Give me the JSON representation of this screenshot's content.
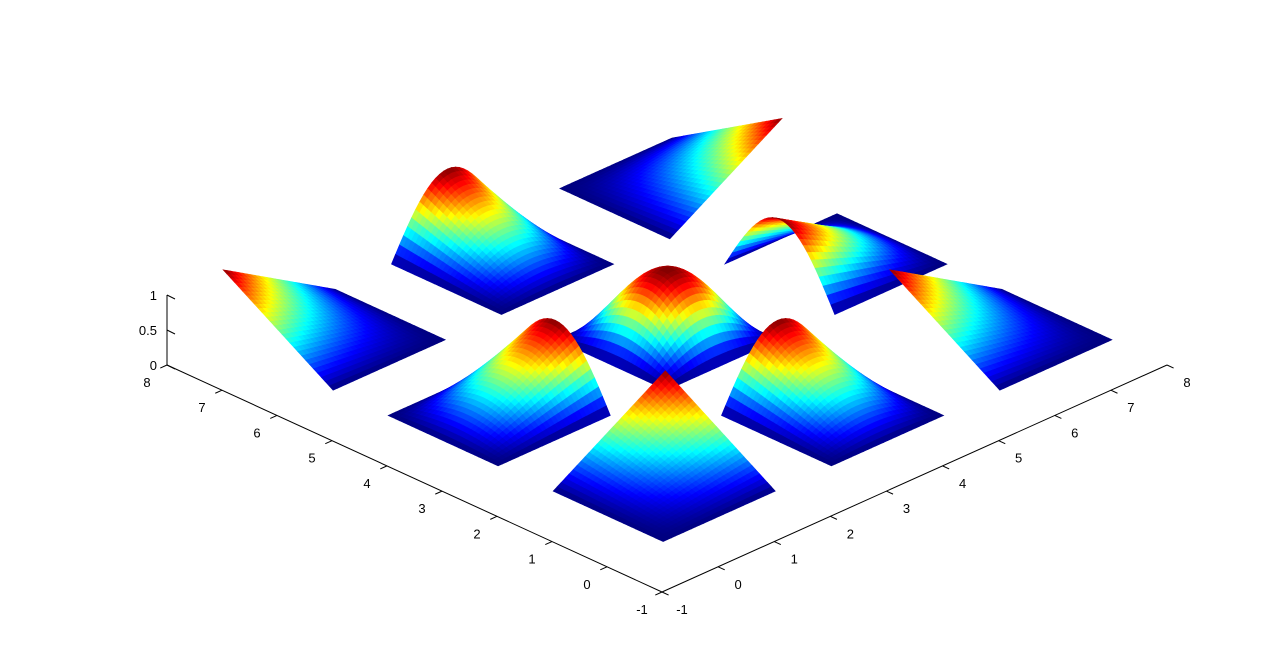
{
  "chart_data": {
    "type": "surface",
    "description_colormap": "jet",
    "xlim": [
      -1,
      8
    ],
    "ylim": [
      -1,
      8
    ],
    "zlim": [
      0,
      1
    ],
    "x_ticks": [
      "-1",
      "0",
      "1",
      "2",
      "3",
      "4",
      "5",
      "6",
      "7",
      "8"
    ],
    "y_ticks": [
      "-1",
      "0",
      "1",
      "2",
      "3",
      "4",
      "5",
      "6",
      "7",
      "8"
    ],
    "z_ticks": [
      "0",
      "0.5",
      "1"
    ],
    "grid": false,
    "title": "",
    "xlabel": "",
    "ylabel": "",
    "zlabel": "",
    "patches": [
      {
        "x_range": [
          0,
          2
        ],
        "y_range": [
          0,
          2
        ],
        "shape": "pyramid-corner",
        "peak": [
          2,
          2
        ],
        "max": 1
      },
      {
        "x_range": [
          3,
          5
        ],
        "y_range": [
          0,
          2
        ],
        "shape": "ridge-along-x",
        "peak_edge": "y=2",
        "max": 1
      },
      {
        "x_range": [
          6,
          8
        ],
        "y_range": [
          0,
          2
        ],
        "shape": "pyramid-corner",
        "peak": [
          6,
          2
        ],
        "max": 1
      },
      {
        "x_range": [
          0,
          2
        ],
        "y_range": [
          3,
          5
        ],
        "shape": "ridge-along-y",
        "peak_edge": "x=2",
        "max": 1
      },
      {
        "x_range": [
          3,
          5
        ],
        "y_range": [
          3,
          5
        ],
        "shape": "bump",
        "peak": [
          4,
          4
        ],
        "max": 1
      },
      {
        "x_range": [
          6,
          8
        ],
        "y_range": [
          3,
          5
        ],
        "shape": "ridge-along-y",
        "peak_edge": "x=6",
        "max": 1
      },
      {
        "x_range": [
          0,
          2
        ],
        "y_range": [
          6,
          8
        ],
        "shape": "pyramid-corner",
        "peak": [
          0,
          8
        ],
        "max": 1
      },
      {
        "x_range": [
          3,
          5
        ],
        "y_range": [
          6,
          8
        ],
        "shape": "ridge-along-x",
        "peak_edge": "y=8",
        "max": 1
      },
      {
        "x_range": [
          6,
          8
        ],
        "y_range": [
          6,
          8
        ],
        "shape": "pyramid-corner",
        "peak": [
          8,
          6
        ],
        "max": 1
      }
    ]
  }
}
